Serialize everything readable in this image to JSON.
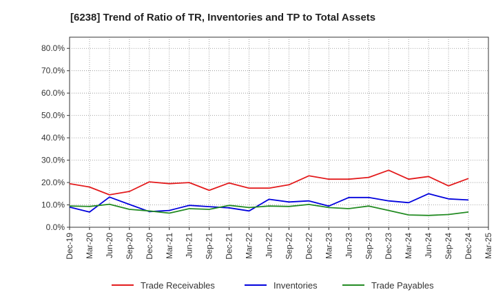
{
  "chart_data": {
    "type": "line",
    "title": "[6238]  Trend of Ratio of TR, Inventories and TP to Total Assets",
    "xlabel": "",
    "ylabel": "",
    "ylim": [
      0,
      85
    ],
    "y_ticks": [
      0,
      10,
      20,
      30,
      40,
      50,
      60,
      70,
      80
    ],
    "y_tick_labels": [
      "0.0%",
      "10.0%",
      "20.0%",
      "30.0%",
      "40.0%",
      "50.0%",
      "60.0%",
      "70.0%",
      "80.0%"
    ],
    "categories": [
      "Dec-19",
      "Mar-20",
      "Jun-20",
      "Sep-20",
      "Dec-20",
      "Mar-21",
      "Jun-21",
      "Sep-21",
      "Dec-21",
      "Mar-22",
      "Jun-22",
      "Sep-22",
      "Dec-22",
      "Mar-23",
      "Jun-23",
      "Sep-23",
      "Dec-23",
      "Mar-24",
      "Jun-24",
      "Sep-24",
      "Dec-24",
      "Mar-25"
    ],
    "grid": true,
    "legend_position": "bottom",
    "series": [
      {
        "name": "Trade Receivables",
        "color": "#e31a1c",
        "values": [
          19.5,
          18.0,
          14.5,
          16.0,
          20.3,
          19.5,
          20.0,
          16.5,
          19.8,
          17.5,
          17.5,
          19.0,
          23.0,
          21.5,
          21.5,
          22.3,
          25.5,
          21.5,
          22.7,
          18.5,
          21.8,
          null
        ]
      },
      {
        "name": "Inventories",
        "color": "#0000dd",
        "values": [
          9.0,
          6.8,
          13.5,
          10.2,
          7.0,
          7.5,
          9.8,
          9.2,
          8.7,
          7.3,
          12.5,
          11.3,
          11.8,
          9.5,
          13.3,
          13.3,
          11.8,
          11.0,
          15.0,
          12.7,
          12.2,
          null
        ]
      },
      {
        "name": "Trade Payables",
        "color": "#228b22",
        "values": [
          9.5,
          9.3,
          10.3,
          8.0,
          7.3,
          6.3,
          8.3,
          8.0,
          9.8,
          8.8,
          9.5,
          9.3,
          10.2,
          8.8,
          8.3,
          9.5,
          7.5,
          5.5,
          5.3,
          5.7,
          6.8,
          null
        ]
      }
    ]
  }
}
